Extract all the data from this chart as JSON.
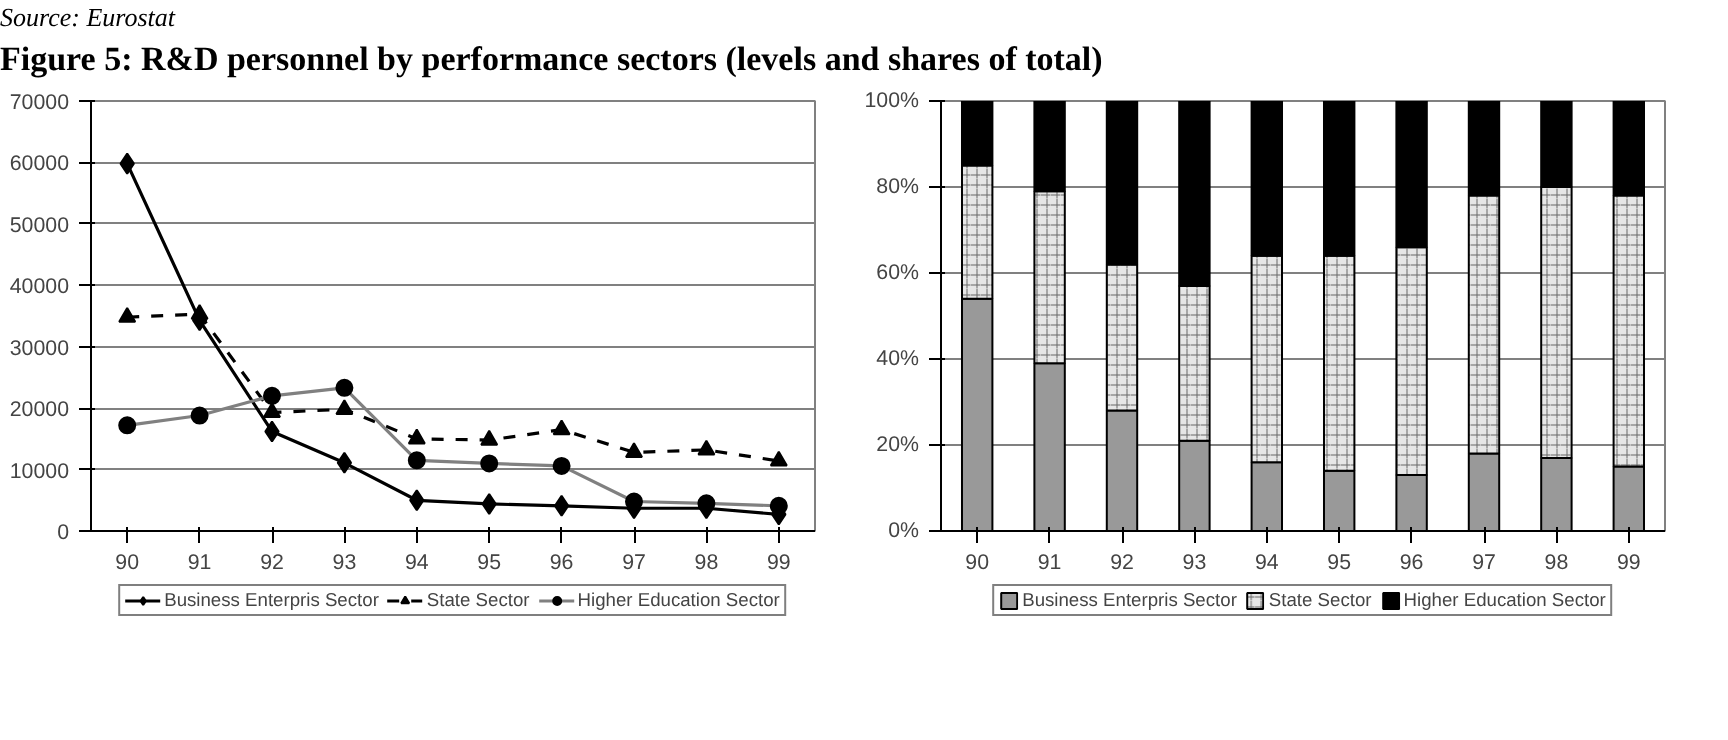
{
  "chart_data": [
    {
      "type": "line",
      "title": "Figure 5: R&D personnel by performance sectors (levels and shares of total)",
      "annotations": [
        "Source: Eurostat"
      ],
      "categories": [
        "90",
        "91",
        "92",
        "93",
        "94",
        "95",
        "96",
        "97",
        "98",
        "99"
      ],
      "series": [
        {
          "name": "Business Enterpris Sector",
          "color": "#000000",
          "marker": "diamond",
          "line_style": "solid",
          "values": [
            59800,
            34300,
            16200,
            11100,
            5000,
            4400,
            4100,
            3700,
            3700,
            2700
          ]
        },
        {
          "name": "State Sector",
          "color": "#000000",
          "marker": "triangle",
          "line_style": "dashed",
          "values": [
            34800,
            35300,
            19300,
            19800,
            15000,
            14800,
            16500,
            12800,
            13200,
            11400
          ]
        },
        {
          "name": "Higher Education Sector",
          "color": "#808080",
          "marker": "circle",
          "line_style": "solid",
          "values": [
            17200,
            18800,
            22000,
            23300,
            11500,
            11000,
            10600,
            4800,
            4500,
            4100
          ]
        }
      ],
      "ylim": [
        0,
        70000
      ],
      "yticks": [
        0,
        10000,
        20000,
        30000,
        40000,
        50000,
        60000,
        70000
      ],
      "grid": "y",
      "legend": "bottom"
    },
    {
      "type": "bar",
      "stacked": true,
      "categories": [
        "90",
        "91",
        "92",
        "93",
        "94",
        "95",
        "96",
        "97",
        "98",
        "99"
      ],
      "series": [
        {
          "name": "Business Enterpris Sector",
          "color": "#999999",
          "values": [
            54,
            39,
            28,
            21,
            16,
            14,
            13,
            18,
            17,
            15
          ]
        },
        {
          "name": "State Sector",
          "color": "#e6e6e6",
          "values": [
            31,
            40,
            34,
            36,
            48,
            50,
            53,
            60,
            63,
            63
          ]
        },
        {
          "name": "Higher Education Sector",
          "color": "#000000",
          "values": [
            15,
            21,
            38,
            43,
            36,
            36,
            34,
            22,
            20,
            22
          ]
        }
      ],
      "ylim": [
        0,
        100
      ],
      "yticks": [
        {
          "value": 0,
          "label": "0%"
        },
        {
          "value": 20,
          "label": "20%"
        },
        {
          "value": 40,
          "label": "40%"
        },
        {
          "value": 60,
          "label": "60%"
        },
        {
          "value": 80,
          "label": "80%"
        },
        {
          "value": 100,
          "label": "100%"
        }
      ],
      "grid": "y",
      "legend": "bottom"
    }
  ]
}
